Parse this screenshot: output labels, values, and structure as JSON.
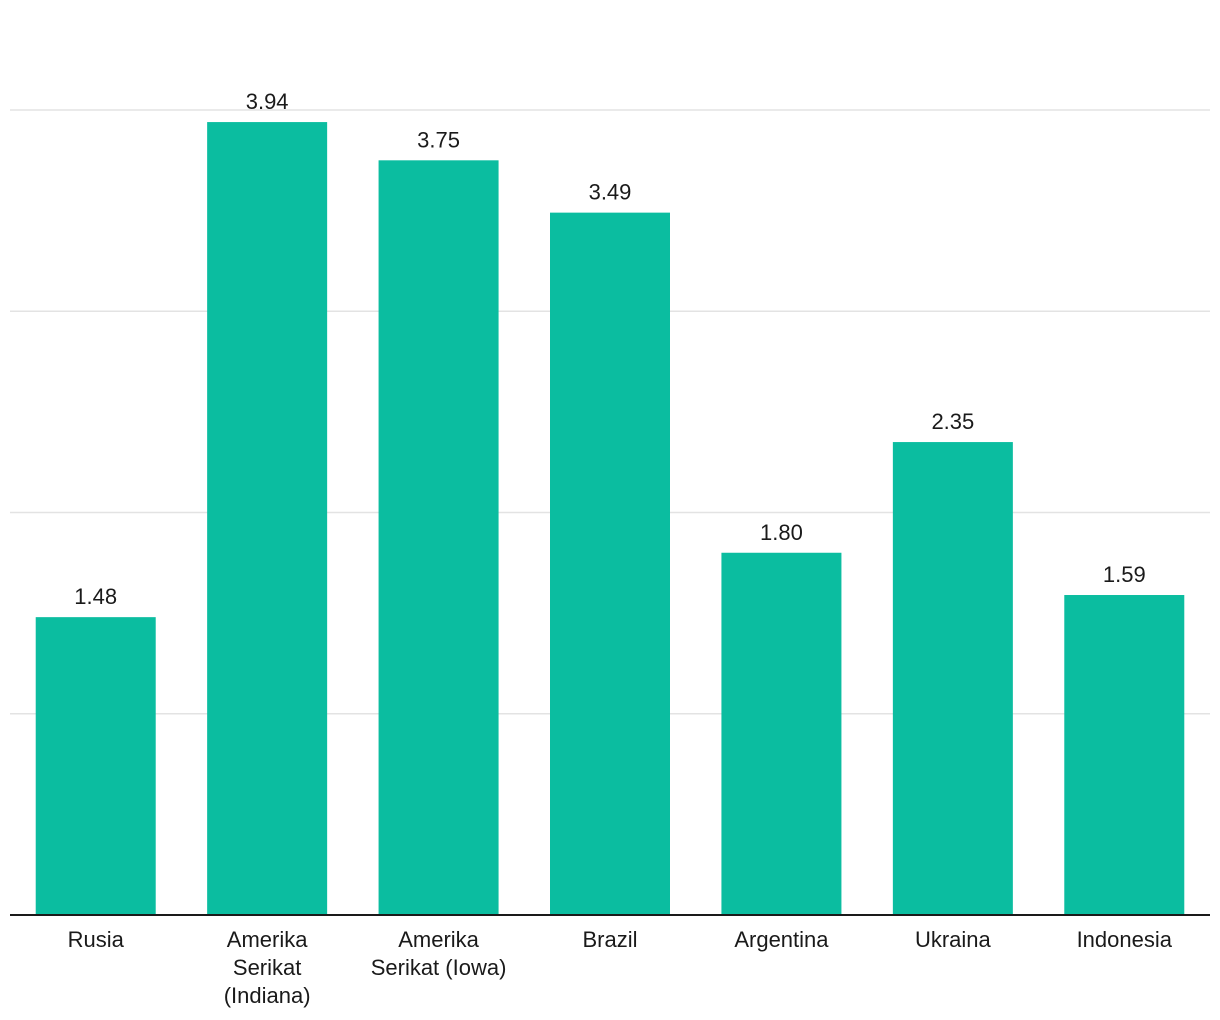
{
  "chart_data": {
    "type": "bar",
    "categories": [
      [
        "Rusia"
      ],
      [
        "Amerika",
        "Serikat",
        "(Indiana)"
      ],
      [
        "Amerika",
        "Serikat (Iowa)"
      ],
      [
        "Brazil"
      ],
      [
        "Argentina"
      ],
      [
        "Ukraina"
      ],
      [
        "Indonesia"
      ]
    ],
    "values": [
      1.48,
      3.94,
      3.75,
      3.49,
      1.8,
      2.35,
      1.59
    ],
    "value_labels": [
      "1.48",
      "3.94",
      "3.75",
      "3.49",
      "1.80",
      "2.35",
      "1.59"
    ],
    "title": "",
    "xlabel": "",
    "ylabel": "",
    "ylim": [
      0,
      4
    ],
    "grid": true,
    "colors": {
      "bar": "#0bbda0",
      "grid": "#e3e3e3",
      "axis": "#1a1a1a"
    }
  }
}
